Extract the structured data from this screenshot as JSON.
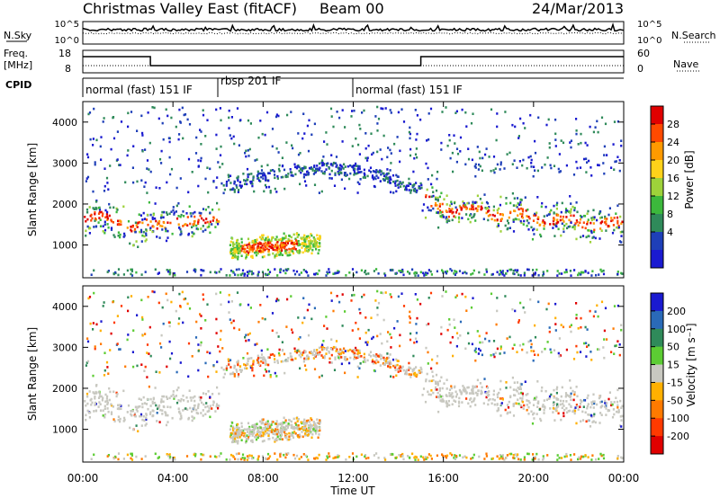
{
  "header": {
    "title": "Christmas Valley East (fitACF)",
    "beam": "Beam 00",
    "date": "24/Mar/2013"
  },
  "noise_panel": {
    "left_label": "N.Sky",
    "right_label": "N.Search",
    "left_ticks": [
      "10^5",
      "10^0"
    ],
    "right_ticks": [
      "10^5",
      "10^0"
    ]
  },
  "freq_panel": {
    "left_label_1": "Freq.",
    "left_label_2": "[MHz]",
    "right_label": "Nave",
    "left_ticks": [
      "18",
      "8"
    ],
    "right_ticks": [
      "60",
      "0"
    ],
    "freq_segments": [
      {
        "start": 0,
        "end": 3.0,
        "level": "high"
      },
      {
        "start": 3.0,
        "end": 15.0,
        "level": "low"
      },
      {
        "start": 15.0,
        "end": 24.0,
        "level": "high"
      }
    ]
  },
  "cpid": {
    "label": "CPID",
    "segments": [
      {
        "start": 0,
        "end": 6.0,
        "text": "normal (fast) 151 IF"
      },
      {
        "start": 6.0,
        "end": 12.0,
        "text": "rbsp 201 IF"
      },
      {
        "start": 12.0,
        "end": 24.0,
        "text": "normal (fast) 151 IF"
      }
    ]
  },
  "chart_data": [
    {
      "type": "heatmap",
      "panel": "power",
      "ylabel": "Slant Range [km]",
      "ylim": [
        200,
        4500
      ],
      "xlim": [
        0,
        24
      ],
      "yticks": [
        "1000",
        "2000",
        "3000",
        "4000"
      ],
      "colorbar_label": "Power [dB]",
      "colorbar_ticks": [
        "4",
        "8",
        "12",
        "16",
        "20",
        "24",
        "28"
      ],
      "colorbar_colors": [
        "#1a1ad0",
        "#1e3fb8",
        "#2f8a5a",
        "#3cb83c",
        "#9ed23a",
        "#ffd21a",
        "#ff9a00",
        "#ff4a00",
        "#e00000"
      ]
    },
    {
      "type": "heatmap",
      "panel": "velocity",
      "ylabel": "Slant Range [km]",
      "ylim": [
        200,
        4500
      ],
      "xlim": [
        0,
        24
      ],
      "yticks": [
        "1000",
        "2000",
        "3000",
        "4000"
      ],
      "colorbar_label": "Velocity [m s⁻¹]",
      "colorbar_ticks": [
        "200",
        "100",
        "50",
        "15",
        "-15",
        "-50",
        "-100",
        "-200"
      ],
      "colorbar_colors": [
        "#1a1ad0",
        "#2a6ab8",
        "#2f8a5a",
        "#5ccc33",
        "#c8c8c0",
        "#ffb000",
        "#ff7a00",
        "#ff3a00",
        "#e00000"
      ]
    }
  ],
  "xaxis": {
    "label": "Time UT",
    "ticks": [
      "00:00",
      "04:00",
      "08:00",
      "12:00",
      "16:00",
      "20:00",
      "00:00"
    ]
  }
}
